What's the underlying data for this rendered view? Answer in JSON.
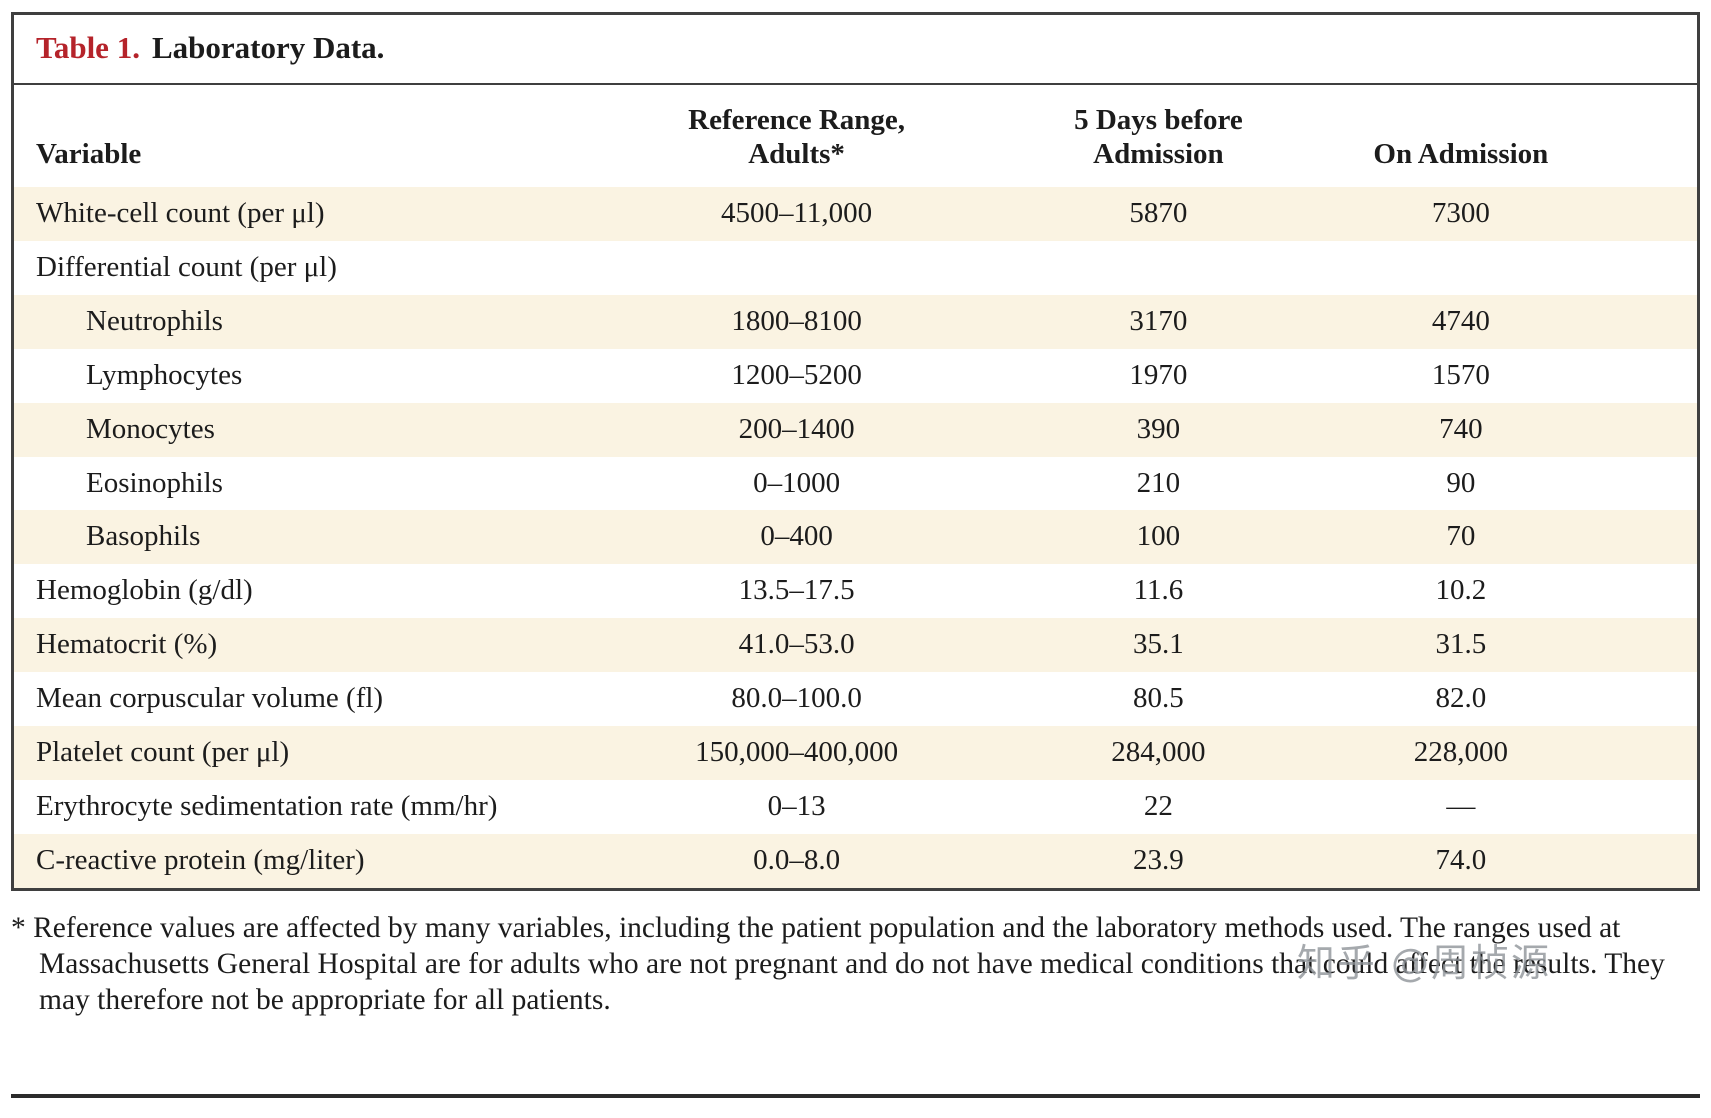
{
  "title": {
    "label": "Table 1.",
    "text": "Laboratory Data."
  },
  "table": {
    "columns": [
      "Variable",
      "Reference Range,\nAdults*",
      "5 Days before\nAdmission",
      "On Admission"
    ],
    "rows": [
      {
        "variable": "White-cell count (per μl)",
        "indent": false,
        "ref": "4500–11,000",
        "day5": "5870",
        "admission": "7300"
      },
      {
        "variable": "Differential count (per μl)",
        "indent": false,
        "ref": "",
        "day5": "",
        "admission": ""
      },
      {
        "variable": "Neutrophils",
        "indent": true,
        "ref": "1800–8100",
        "day5": "3170",
        "admission": "4740"
      },
      {
        "variable": "Lymphocytes",
        "indent": true,
        "ref": "1200–5200",
        "day5": "1970",
        "admission": "1570"
      },
      {
        "variable": "Monocytes",
        "indent": true,
        "ref": "200–1400",
        "day5": "390",
        "admission": "740"
      },
      {
        "variable": "Eosinophils",
        "indent": true,
        "ref": "0–1000",
        "day5": "210",
        "admission": "90"
      },
      {
        "variable": "Basophils",
        "indent": true,
        "ref": "0–400",
        "day5": "100",
        "admission": "70"
      },
      {
        "variable": "Hemoglobin (g/dl)",
        "indent": false,
        "ref": "13.5–17.5",
        "day5": "11.6",
        "admission": "10.2"
      },
      {
        "variable": "Hematocrit (%)",
        "indent": false,
        "ref": "41.0–53.0",
        "day5": "35.1",
        "admission": "31.5"
      },
      {
        "variable": "Mean corpuscular volume (fl)",
        "indent": false,
        "ref": "80.0–100.0",
        "day5": "80.5",
        "admission": "82.0"
      },
      {
        "variable": "Platelet count (per μl)",
        "indent": false,
        "ref": "150,000–400,000",
        "day5": "284,000",
        "admission": "228,000"
      },
      {
        "variable": "Erythrocyte sedimentation rate (mm/hr)",
        "indent": false,
        "ref": "0–13",
        "day5": "22",
        "admission": "—"
      },
      {
        "variable": "C-reactive protein (mg/liter)",
        "indent": false,
        "ref": "0.0–8.0",
        "day5": "23.9",
        "admission": "74.0"
      }
    ]
  },
  "footnote": "* Reference values are affected by many variables, including the patient population and the laboratory methods used. The ranges used at Massachusetts General Hospital are for adults who are not pregnant and do not have medical conditions that could affect the results. They may therefore not be appropriate for all patients.",
  "watermark": "知乎 @周桢源",
  "colors": {
    "accent_red": "#b5232a",
    "row_stripe": "#faf3e2",
    "border": "#3f3f3f",
    "text": "#1c1c1c",
    "watermark": "#8f9499"
  }
}
